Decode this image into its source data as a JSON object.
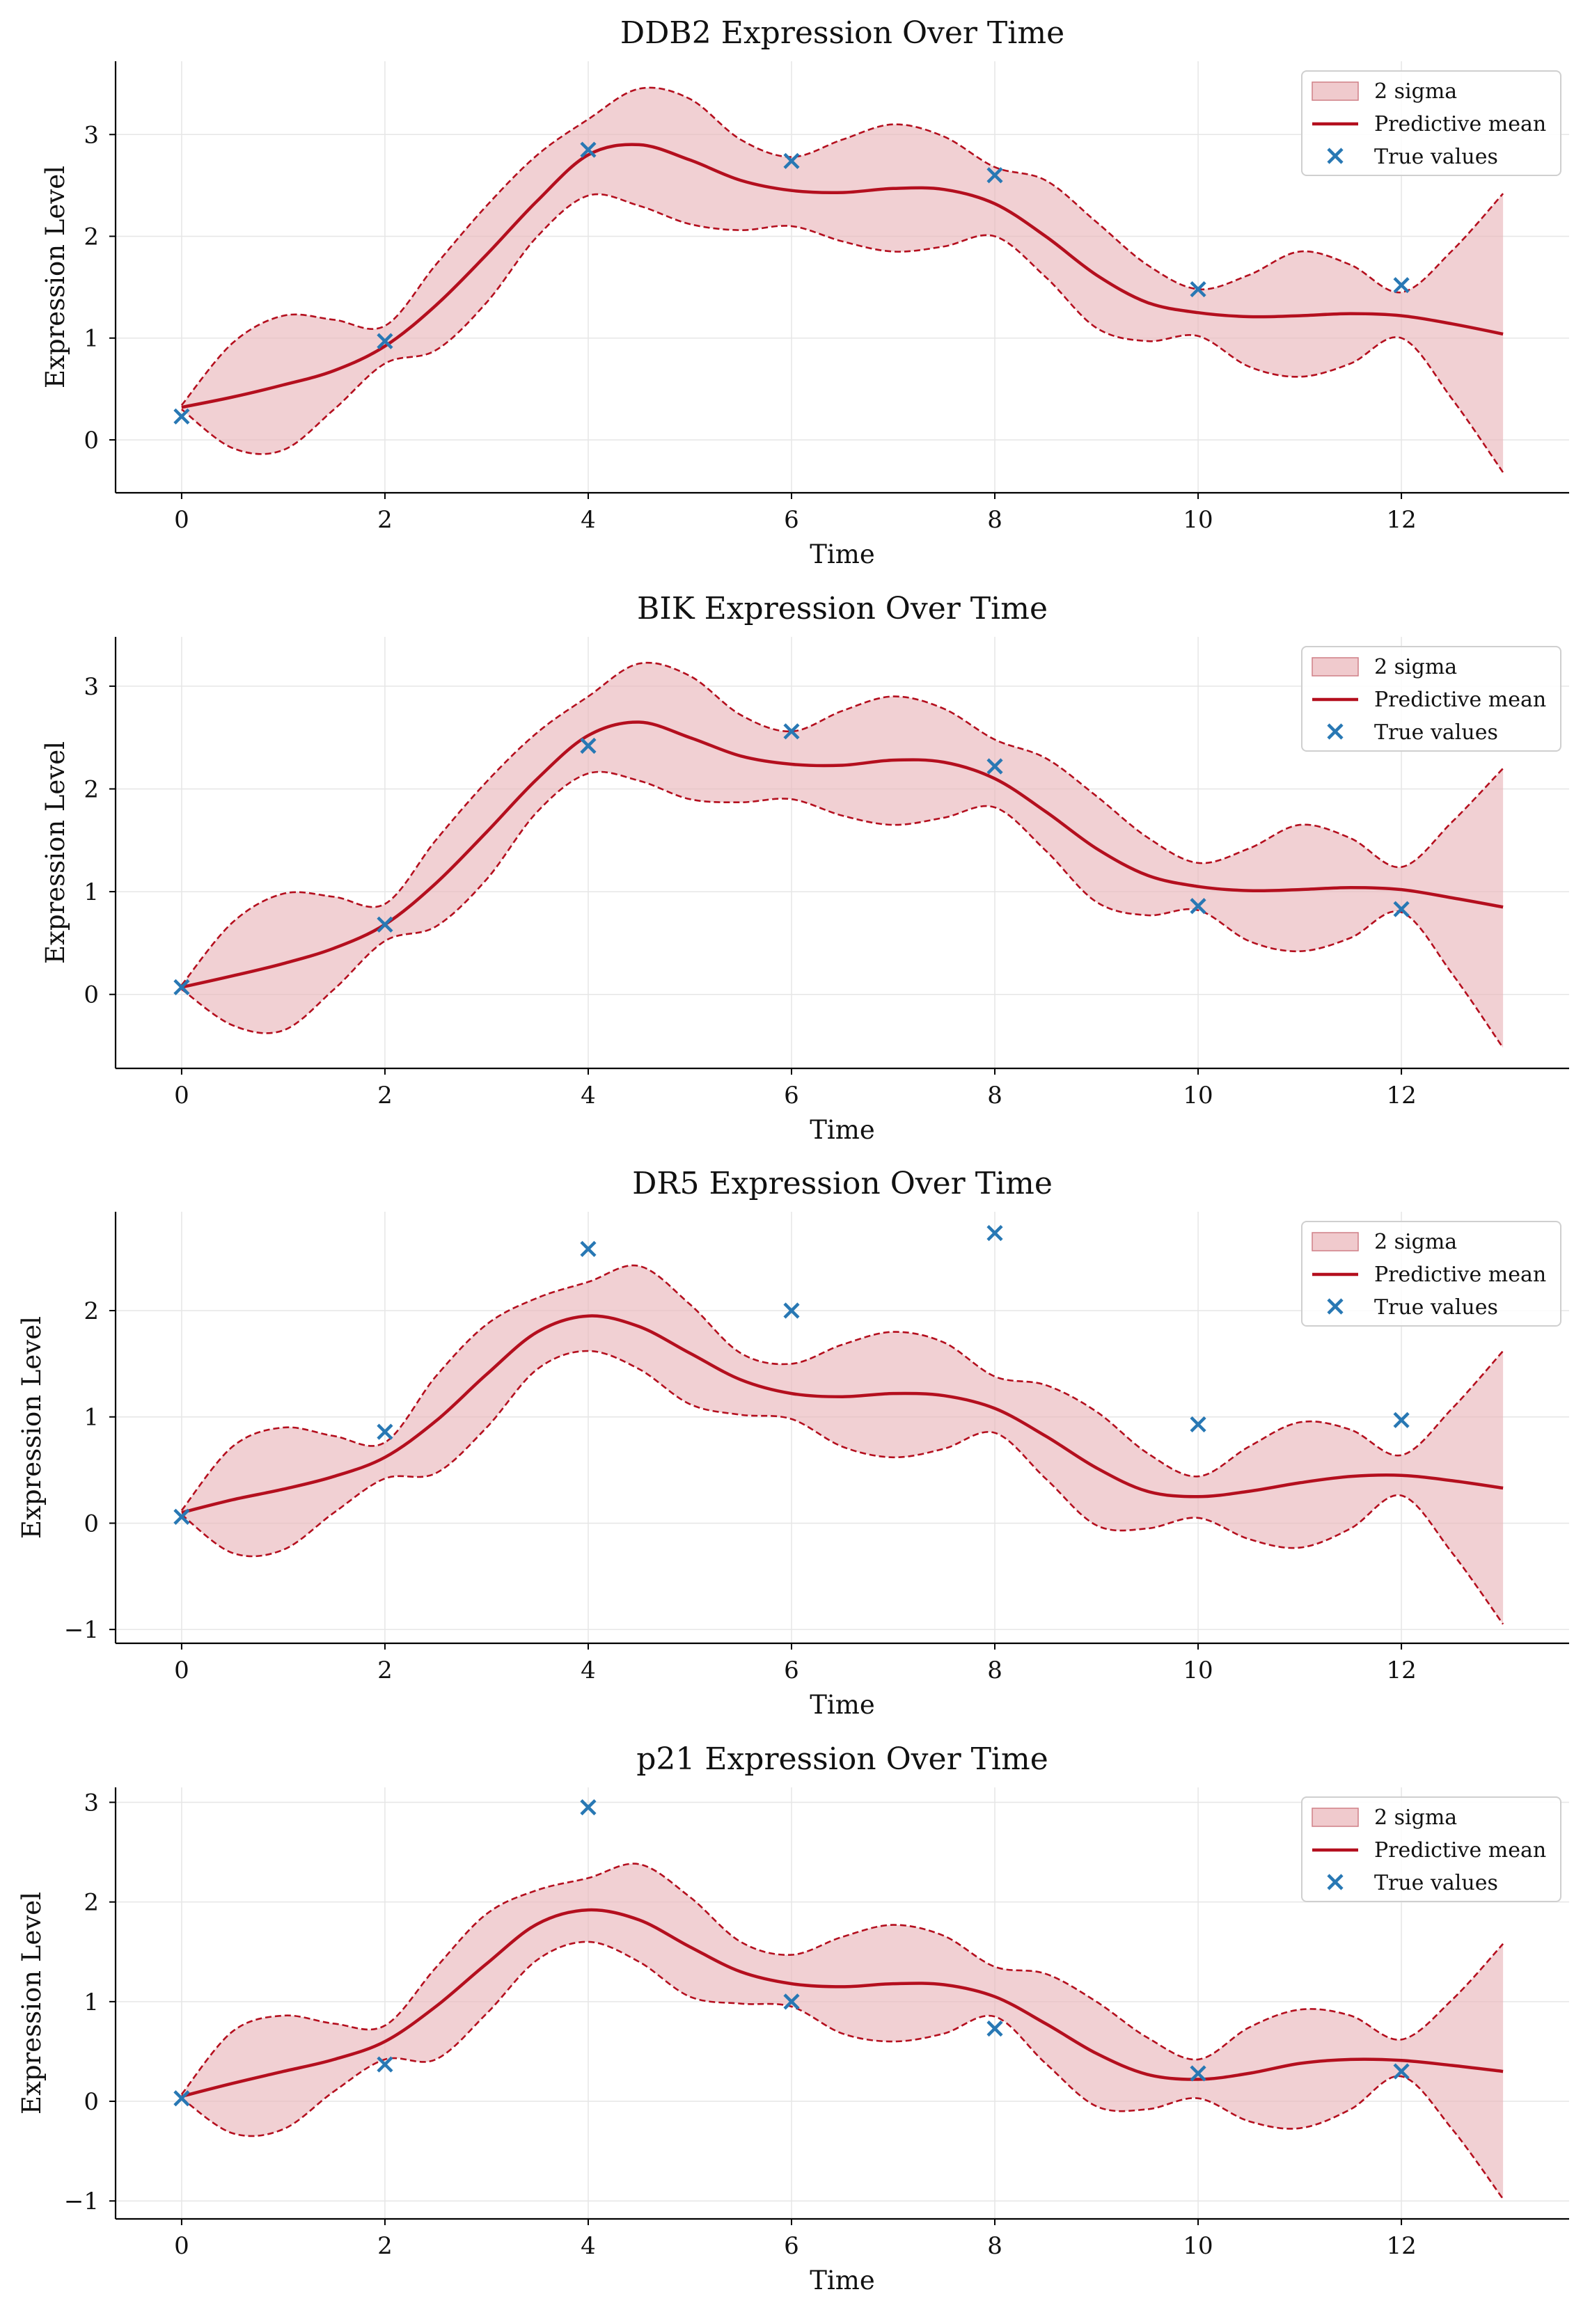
{
  "colors": {
    "band_fill": "#e9b3b8",
    "band_edge": "#b40f1e",
    "mean_line": "#b40f1e",
    "true_marker": "#2878b4",
    "grid": "#e6e6e6",
    "axis": "#000000"
  },
  "legend_labels": {
    "band": "2 sigma",
    "mean": "Predictive mean",
    "truth": "True values"
  },
  "chart_data": [
    {
      "type": "line",
      "title": "DDB2 Expression Over Time",
      "xlabel": "Time",
      "ylabel": "Expression Level",
      "xlim": [
        -0.65,
        13.65
      ],
      "ylim": [
        -0.52,
        3.72
      ],
      "xticks": [
        0,
        2,
        4,
        6,
        8,
        10,
        12
      ],
      "yticks": [
        0,
        1,
        2,
        3
      ],
      "ytick_labels": [
        "0",
        "1",
        "2",
        "3"
      ],
      "grid": true,
      "legend": "top-right",
      "series": [
        {
          "name": "Predictive mean",
          "x": [
            0,
            0.5,
            1,
            1.5,
            2,
            2.5,
            3,
            3.5,
            4,
            4.5,
            5,
            5.5,
            6,
            6.5,
            7,
            7.5,
            8,
            8.5,
            9,
            9.5,
            10,
            10.5,
            11,
            11.5,
            12,
            12.5,
            13
          ],
          "y": [
            0.32,
            0.42,
            0.54,
            0.68,
            0.92,
            1.32,
            1.82,
            2.35,
            2.8,
            2.9,
            2.75,
            2.55,
            2.45,
            2.43,
            2.47,
            2.46,
            2.32,
            2.0,
            1.62,
            1.35,
            1.25,
            1.21,
            1.22,
            1.24,
            1.22,
            1.14,
            1.04
          ]
        },
        {
          "name": "2 sigma",
          "x": [
            0,
            0.5,
            1,
            1.5,
            2,
            2.5,
            3,
            3.5,
            4,
            4.5,
            5,
            5.5,
            6,
            6.5,
            7,
            7.5,
            8,
            8.5,
            9,
            9.5,
            10,
            10.5,
            11,
            11.5,
            12,
            12.5,
            13
          ],
          "lower": [
            0.3,
            -0.08,
            -0.1,
            0.3,
            0.75,
            0.88,
            1.35,
            2.0,
            2.4,
            2.3,
            2.12,
            2.06,
            2.1,
            1.95,
            1.85,
            1.9,
            2.0,
            1.6,
            1.1,
            0.97,
            1.02,
            0.72,
            0.62,
            0.75,
            1.0,
            0.4,
            -0.32
          ],
          "upper": [
            0.34,
            0.95,
            1.22,
            1.18,
            1.12,
            1.72,
            2.3,
            2.8,
            3.15,
            3.45,
            3.35,
            2.95,
            2.78,
            2.95,
            3.1,
            2.98,
            2.68,
            2.55,
            2.14,
            1.72,
            1.48,
            1.62,
            1.85,
            1.72,
            1.45,
            1.86,
            2.42
          ]
        },
        {
          "name": "True values",
          "x": [
            0,
            2,
            4,
            6,
            8,
            10,
            12
          ],
          "y": [
            0.23,
            0.97,
            2.85,
            2.74,
            2.6,
            1.48,
            1.52
          ]
        }
      ]
    },
    {
      "type": "line",
      "title": "BIK Expression Over Time",
      "xlabel": "Time",
      "ylabel": "Expression Level",
      "xlim": [
        -0.65,
        13.65
      ],
      "ylim": [
        -0.72,
        3.48
      ],
      "xticks": [
        0,
        2,
        4,
        6,
        8,
        10,
        12
      ],
      "yticks": [
        0,
        1,
        2,
        3
      ],
      "ytick_labels": [
        "0",
        "1",
        "2",
        "3"
      ],
      "grid": true,
      "legend": "top-right",
      "series": [
        {
          "name": "Predictive mean",
          "x": [
            0,
            0.5,
            1,
            1.5,
            2,
            2.5,
            3,
            3.5,
            4,
            4.5,
            5,
            5.5,
            6,
            6.5,
            7,
            7.5,
            8,
            8.5,
            9,
            9.5,
            10,
            10.5,
            11,
            11.5,
            12,
            12.5,
            13
          ],
          "y": [
            0.07,
            0.18,
            0.3,
            0.45,
            0.68,
            1.08,
            1.58,
            2.1,
            2.52,
            2.65,
            2.5,
            2.32,
            2.24,
            2.23,
            2.28,
            2.26,
            2.1,
            1.78,
            1.42,
            1.16,
            1.05,
            1.01,
            1.02,
            1.04,
            1.02,
            0.94,
            0.85
          ]
        },
        {
          "name": "2 sigma",
          "x": [
            0,
            0.5,
            1,
            1.5,
            2,
            2.5,
            3,
            3.5,
            4,
            4.5,
            5,
            5.5,
            6,
            6.5,
            7,
            7.5,
            8,
            8.5,
            9,
            9.5,
            10,
            10.5,
            11,
            11.5,
            12,
            12.5,
            13
          ],
          "lower": [
            0.05,
            -0.3,
            -0.35,
            0.05,
            0.52,
            0.66,
            1.12,
            1.78,
            2.15,
            2.08,
            1.9,
            1.87,
            1.9,
            1.74,
            1.65,
            1.72,
            1.82,
            1.4,
            0.9,
            0.77,
            0.82,
            0.52,
            0.42,
            0.55,
            0.8,
            0.2,
            -0.52
          ],
          "upper": [
            0.09,
            0.7,
            0.98,
            0.95,
            0.88,
            1.5,
            2.07,
            2.55,
            2.9,
            3.22,
            3.1,
            2.72,
            2.56,
            2.76,
            2.9,
            2.78,
            2.48,
            2.3,
            1.93,
            1.53,
            1.28,
            1.42,
            1.65,
            1.52,
            1.24,
            1.68,
            2.2
          ]
        },
        {
          "name": "True values",
          "x": [
            0,
            2,
            4,
            6,
            8,
            10,
            12
          ],
          "y": [
            0.07,
            0.68,
            2.42,
            2.56,
            2.22,
            0.86,
            0.83
          ]
        }
      ]
    },
    {
      "type": "line",
      "title": "DR5 Expression Over Time",
      "xlabel": "Time",
      "ylabel": "Expression Level",
      "xlim": [
        -0.65,
        13.65
      ],
      "ylim": [
        -1.13,
        2.93
      ],
      "xticks": [
        0,
        2,
        4,
        6,
        8,
        10,
        12
      ],
      "yticks": [
        -1,
        0,
        1,
        2
      ],
      "ytick_labels": [
        "−1",
        "0",
        "1",
        "2"
      ],
      "grid": true,
      "legend": "top-right",
      "series": [
        {
          "name": "Predictive mean",
          "x": [
            0,
            0.5,
            1,
            1.5,
            2,
            2.5,
            3,
            3.5,
            4,
            4.5,
            5,
            5.5,
            6,
            6.5,
            7,
            7.5,
            8,
            8.5,
            9,
            9.5,
            10,
            10.5,
            11,
            11.5,
            12,
            12.5,
            13
          ],
          "y": [
            0.1,
            0.22,
            0.32,
            0.44,
            0.62,
            0.96,
            1.4,
            1.8,
            1.95,
            1.85,
            1.6,
            1.35,
            1.22,
            1.19,
            1.22,
            1.2,
            1.08,
            0.82,
            0.52,
            0.3,
            0.25,
            0.3,
            0.38,
            0.44,
            0.45,
            0.4,
            0.33
          ]
        },
        {
          "name": "2 sigma",
          "x": [
            0,
            0.5,
            1,
            1.5,
            2,
            2.5,
            3,
            3.5,
            4,
            4.5,
            5,
            5.5,
            6,
            6.5,
            7,
            7.5,
            8,
            8.5,
            9,
            9.5,
            10,
            10.5,
            11,
            11.5,
            12,
            12.5,
            13
          ],
          "lower": [
            0.08,
            -0.28,
            -0.25,
            0.1,
            0.42,
            0.47,
            0.9,
            1.45,
            1.62,
            1.45,
            1.12,
            1.02,
            0.98,
            0.72,
            0.62,
            0.7,
            0.85,
            0.42,
            -0.02,
            -0.05,
            0.05,
            -0.15,
            -0.23,
            -0.05,
            0.26,
            -0.28,
            -0.95
          ],
          "upper": [
            0.12,
            0.72,
            0.9,
            0.82,
            0.76,
            1.38,
            1.87,
            2.12,
            2.27,
            2.42,
            2.06,
            1.6,
            1.5,
            1.68,
            1.8,
            1.7,
            1.38,
            1.3,
            1.05,
            0.66,
            0.44,
            0.72,
            0.95,
            0.88,
            0.64,
            1.08,
            1.62
          ]
        },
        {
          "name": "True values",
          "x": [
            0,
            2,
            4,
            6,
            8,
            10,
            12
          ],
          "y": [
            0.06,
            0.86,
            2.58,
            2.0,
            2.73,
            0.93,
            0.97
          ]
        }
      ]
    },
    {
      "type": "line",
      "title": "p21 Expression Over Time",
      "xlabel": "Time",
      "ylabel": "Expression Level",
      "xlim": [
        -0.65,
        13.65
      ],
      "ylim": [
        -1.18,
        3.15
      ],
      "xticks": [
        0,
        2,
        4,
        6,
        8,
        10,
        12
      ],
      "yticks": [
        -1,
        0,
        1,
        2,
        3
      ],
      "ytick_labels": [
        "−1",
        "0",
        "1",
        "2",
        "3"
      ],
      "grid": true,
      "legend": "top-right",
      "series": [
        {
          "name": "Predictive mean",
          "x": [
            0,
            0.5,
            1,
            1.5,
            2,
            2.5,
            3,
            3.5,
            4,
            4.5,
            5,
            5.5,
            6,
            6.5,
            7,
            7.5,
            8,
            8.5,
            9,
            9.5,
            10,
            10.5,
            11,
            11.5,
            12,
            12.5,
            13
          ],
          "y": [
            0.05,
            0.18,
            0.3,
            0.42,
            0.6,
            0.95,
            1.38,
            1.78,
            1.92,
            1.82,
            1.55,
            1.3,
            1.18,
            1.15,
            1.18,
            1.17,
            1.05,
            0.78,
            0.48,
            0.27,
            0.22,
            0.28,
            0.38,
            0.42,
            0.41,
            0.36,
            0.3
          ]
        },
        {
          "name": "2 sigma",
          "x": [
            0,
            0.5,
            1,
            1.5,
            2,
            2.5,
            3,
            3.5,
            4,
            4.5,
            5,
            5.5,
            6,
            6.5,
            7,
            7.5,
            8,
            8.5,
            9,
            9.5,
            10,
            10.5,
            11,
            11.5,
            12,
            12.5,
            13
          ],
          "lower": [
            0.03,
            -0.32,
            -0.28,
            0.1,
            0.42,
            0.42,
            0.88,
            1.42,
            1.6,
            1.4,
            1.05,
            0.98,
            0.95,
            0.68,
            0.6,
            0.68,
            0.85,
            0.38,
            -0.05,
            -0.08,
            0.03,
            -0.2,
            -0.27,
            -0.08,
            0.25,
            -0.28,
            -0.98
          ],
          "upper": [
            0.07,
            0.7,
            0.86,
            0.78,
            0.76,
            1.34,
            1.88,
            2.12,
            2.24,
            2.38,
            2.05,
            1.6,
            1.47,
            1.65,
            1.77,
            1.66,
            1.35,
            1.28,
            1.0,
            0.64,
            0.42,
            0.74,
            0.92,
            0.86,
            0.62,
            1.02,
            1.58
          ]
        },
        {
          "name": "True values",
          "x": [
            0,
            2,
            4,
            6,
            8,
            10,
            12
          ],
          "y": [
            0.03,
            0.37,
            2.95,
            1.0,
            0.73,
            0.28,
            0.3
          ]
        }
      ]
    }
  ]
}
